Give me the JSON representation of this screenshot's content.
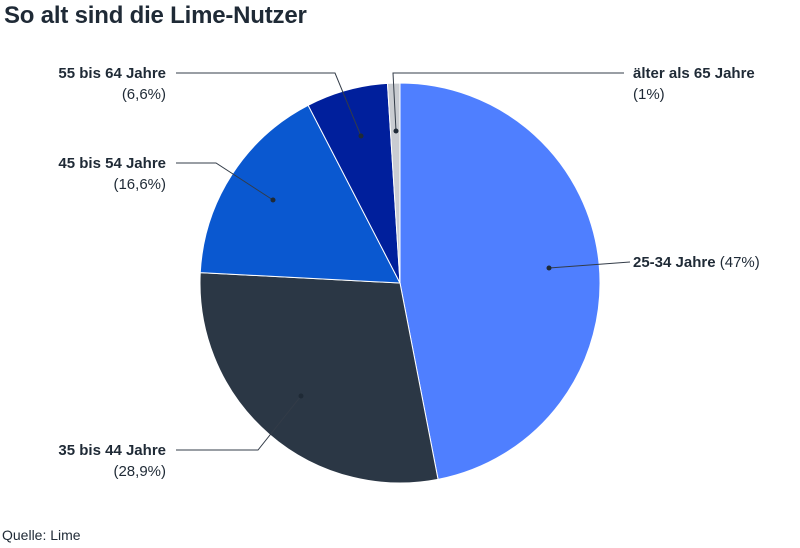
{
  "title": "So alt sind die Lime-Nutzer",
  "source": "Quelle: Lime",
  "chart_data": {
    "type": "pie",
    "title": "So alt sind die Lime-Nutzer",
    "slices": [
      {
        "label": "25-34 Jahre",
        "value": 47,
        "display": "(47%)",
        "color": "#4f7fff"
      },
      {
        "label": "35 bis 44 Jahre",
        "value": 28.9,
        "display": "(28,9%)",
        "color": "#2b3745"
      },
      {
        "label": "45 bis 54 Jahre",
        "value": 16.6,
        "display": "(16,6%)",
        "color": "#0a58d0"
      },
      {
        "label": "55 bis 64 Jahre",
        "value": 6.6,
        "display": "(6,6%)",
        "color": "#001f9c"
      },
      {
        "label": "älter als 65 Jahre",
        "value": 1,
        "display": "(1%)",
        "color": "#c9ccd1"
      }
    ]
  }
}
